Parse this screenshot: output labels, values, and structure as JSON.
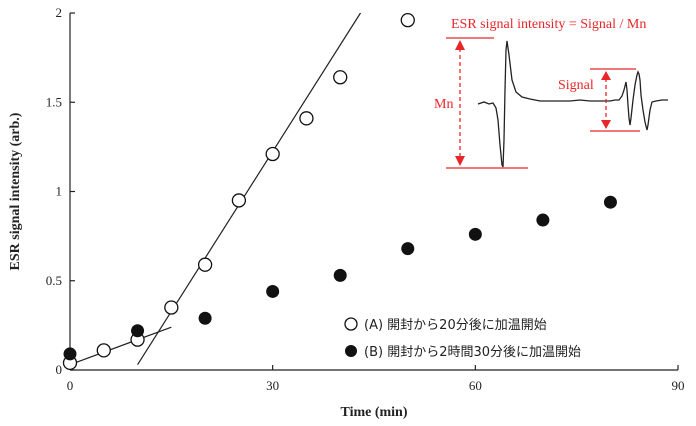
{
  "chart_data": {
    "type": "scatter",
    "xlabel": "Time (min)",
    "ylabel": "ESR signal intensity (arb.)",
    "xlim": [
      0,
      90
    ],
    "ylim": [
      0,
      2
    ],
    "x_ticks": [
      0,
      30,
      60,
      90
    ],
    "y_ticks": [
      0,
      0.5,
      1,
      1.5,
      2
    ],
    "x_tick_labels": [
      "0",
      "30",
      "60",
      "90"
    ],
    "y_tick_labels": [
      "0",
      "0.5",
      "1",
      "1.5",
      "2"
    ],
    "grid": false,
    "legend_position": "bottom-right",
    "series": [
      {
        "name": "(A) 開封から20分後に加温開始",
        "marker": "open-circle",
        "x": [
          0,
          5,
          10,
          15,
          20,
          25,
          30,
          35,
          40,
          50
        ],
        "y": [
          0.04,
          0.11,
          0.17,
          0.35,
          0.59,
          0.95,
          1.21,
          1.41,
          1.64,
          1.96
        ]
      },
      {
        "name": "(B) 開封から2時間30分後に加温開始",
        "marker": "filled-circle",
        "x": [
          0,
          10,
          20,
          30,
          40,
          50,
          60,
          70,
          80
        ],
        "y": [
          0.09,
          0.22,
          0.29,
          0.44,
          0.53,
          0.68,
          0.76,
          0.84,
          0.94
        ]
      }
    ],
    "fit_lines": [
      {
        "x": [
          0,
          15
        ],
        "y": [
          0.03,
          0.24
        ]
      },
      {
        "x": [
          10,
          43
        ],
        "y": [
          0.03,
          2.0
        ]
      }
    ],
    "inset": {
      "formula": "ESR signal intensity = Signal / Mn",
      "label_mn": "Mn",
      "label_signal": "Signal"
    },
    "colors": {
      "axis": "#222222",
      "marker": "#111111",
      "annotation": "#e8262a"
    }
  }
}
